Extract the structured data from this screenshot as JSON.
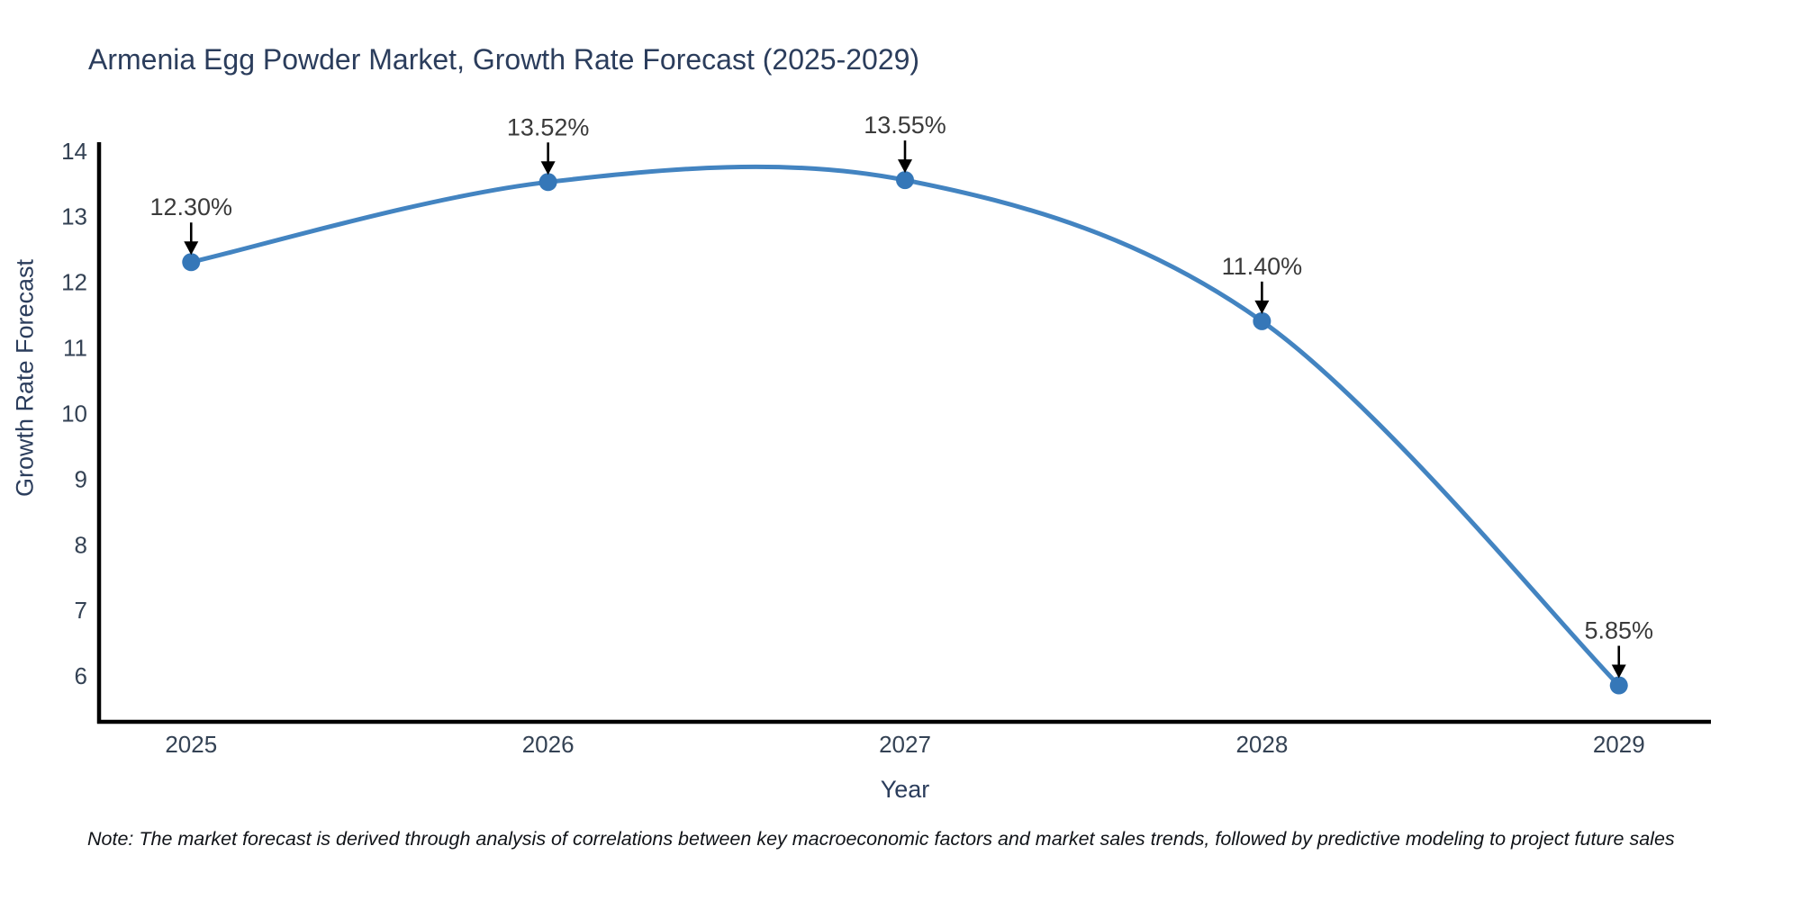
{
  "note": "Note: The market forecast is derived through analysis of correlations between key macroeconomic factors and market sales trends, followed by predictive modeling to project future sales",
  "chart_data": {
    "type": "line",
    "title": "Armenia Egg Powder Market, Growth Rate Forecast (2025-2029)",
    "xlabel": "Year",
    "ylabel": "Growth Rate Forecast",
    "x": [
      2025,
      2026,
      2027,
      2028,
      2029
    ],
    "series": [
      {
        "name": "Growth Rate Forecast",
        "values": [
          12.3,
          13.52,
          13.55,
          11.4,
          5.85
        ]
      }
    ],
    "point_labels": [
      "12.30%",
      "13.52%",
      "13.55%",
      "11.40%",
      "5.85%"
    ],
    "yticks": [
      6,
      7,
      8,
      9,
      10,
      11,
      12,
      13,
      14
    ],
    "xticks": [
      2025,
      2026,
      2027,
      2028,
      2029
    ],
    "ylim": [
      5.295,
      14.1
    ],
    "xlim": [
      2024.742,
      2029.258
    ],
    "line_shape": "spline",
    "grid": false,
    "legend": false,
    "colors": {
      "line": "#4384c1",
      "marker": "#3577b8",
      "axis": "#000000",
      "title": "#2b3d5c",
      "tick": "#344254",
      "annotation": "#3a3a3a",
      "arrow": "#000000"
    }
  }
}
